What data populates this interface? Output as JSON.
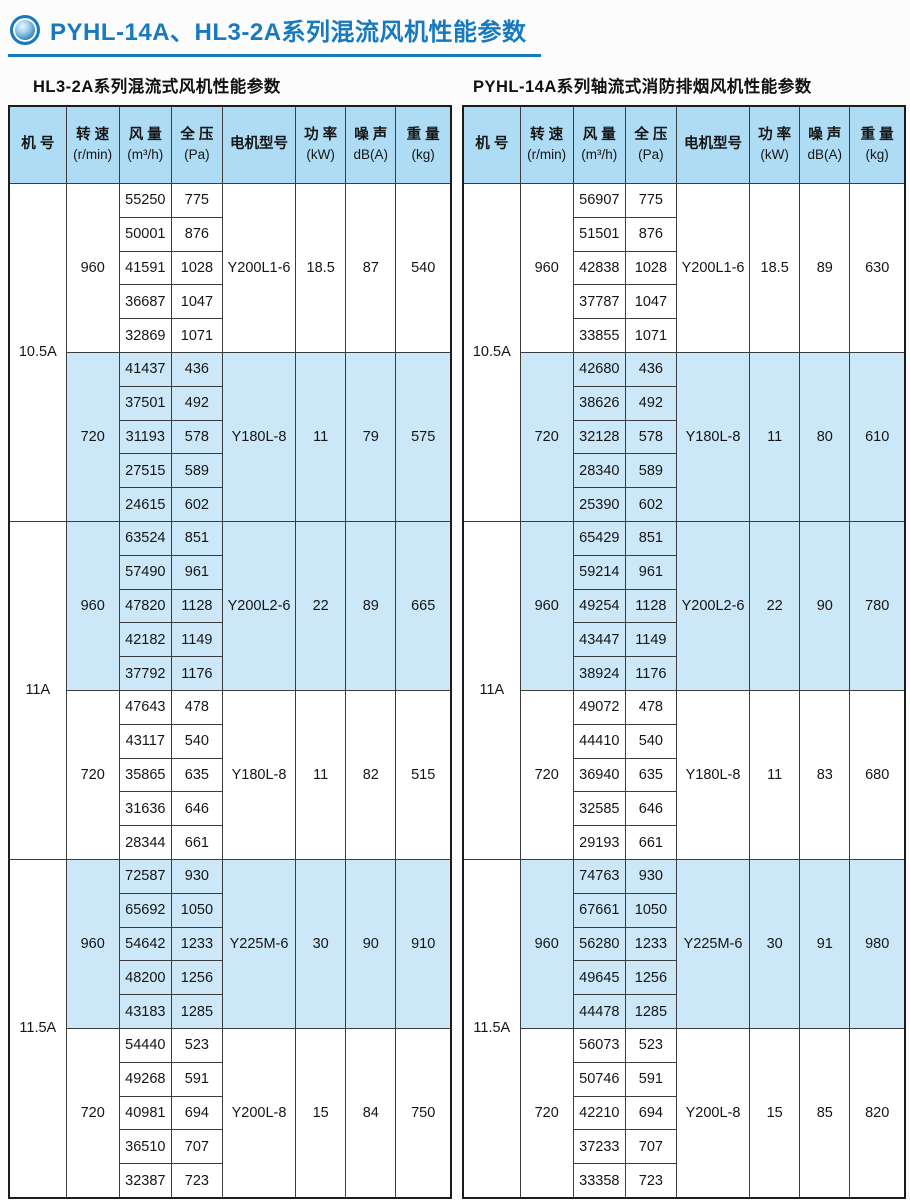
{
  "page": {
    "title": "PYHL-14A、HL3-2A系列混流风机性能参数"
  },
  "colors": {
    "accent_blue": "#1779be",
    "header_bg": "#aedcf4",
    "row_shade_bg": "#cbe7f8",
    "border": "#3c3c3c"
  },
  "headers": [
    {
      "line1": "机 号",
      "line2": ""
    },
    {
      "line1": "转 速",
      "line2": "(r/min)"
    },
    {
      "line1": "风 量",
      "line2": "(m³/h)"
    },
    {
      "line1": "全 压",
      "line2": "(Pa)"
    },
    {
      "line1": "电机型号",
      "line2": ""
    },
    {
      "line1": "功 率",
      "line2": "(kW)"
    },
    {
      "line1": "噪 声",
      "line2": "dB(A)"
    },
    {
      "line1": "重 量",
      "line2": "(kg)"
    }
  ],
  "tables": [
    {
      "id": "hl3-2a",
      "subtitle": "HL3-2A系列混流式风机性能参数",
      "blocks": [
        {
          "model": "10.5A",
          "sections": [
            {
              "speed": "960",
              "shaded": false,
              "motor": "Y200L1-6",
              "power": "18.5",
              "noise": "87",
              "weight": "540",
              "rows": [
                [
                  "55250",
                  "775"
                ],
                [
                  "50001",
                  "876"
                ],
                [
                  "41591",
                  "1028"
                ],
                [
                  "36687",
                  "1047"
                ],
                [
                  "32869",
                  "1071"
                ]
              ]
            },
            {
              "speed": "720",
              "shaded": true,
              "motor": "Y180L-8",
              "power": "11",
              "noise": "79",
              "weight": "575",
              "rows": [
                [
                  "41437",
                  "436"
                ],
                [
                  "37501",
                  "492"
                ],
                [
                  "31193",
                  "578"
                ],
                [
                  "27515",
                  "589"
                ],
                [
                  "24615",
                  "602"
                ]
              ]
            }
          ]
        },
        {
          "model": "11A",
          "sections": [
            {
              "speed": "960",
              "shaded": true,
              "motor": "Y200L2-6",
              "power": "22",
              "noise": "89",
              "weight": "665",
              "rows": [
                [
                  "63524",
                  "851"
                ],
                [
                  "57490",
                  "961"
                ],
                [
                  "47820",
                  "1128"
                ],
                [
                  "42182",
                  "1149"
                ],
                [
                  "37792",
                  "1176"
                ]
              ]
            },
            {
              "speed": "720",
              "shaded": false,
              "motor": "Y180L-8",
              "power": "11",
              "noise": "82",
              "weight": "515",
              "rows": [
                [
                  "47643",
                  "478"
                ],
                [
                  "43117",
                  "540"
                ],
                [
                  "35865",
                  "635"
                ],
                [
                  "31636",
                  "646"
                ],
                [
                  "28344",
                  "661"
                ]
              ]
            }
          ]
        },
        {
          "model": "11.5A",
          "sections": [
            {
              "speed": "960",
              "shaded": true,
              "motor": "Y225M-6",
              "power": "30",
              "noise": "90",
              "weight": "910",
              "rows": [
                [
                  "72587",
                  "930"
                ],
                [
                  "65692",
                  "1050"
                ],
                [
                  "54642",
                  "1233"
                ],
                [
                  "48200",
                  "1256"
                ],
                [
                  "43183",
                  "1285"
                ]
              ]
            },
            {
              "speed": "720",
              "shaded": false,
              "motor": "Y200L-8",
              "power": "15",
              "noise": "84",
              "weight": "750",
              "rows": [
                [
                  "54440",
                  "523"
                ],
                [
                  "49268",
                  "591"
                ],
                [
                  "40981",
                  "694"
                ],
                [
                  "36510",
                  "707"
                ],
                [
                  "32387",
                  "723"
                ]
              ]
            }
          ]
        }
      ]
    },
    {
      "id": "pyhl-14a",
      "subtitle": "PYHL-14A系列轴流式消防排烟风机性能参数",
      "blocks": [
        {
          "model": "10.5A",
          "sections": [
            {
              "speed": "960",
              "shaded": false,
              "motor": "Y200L1-6",
              "power": "18.5",
              "noise": "89",
              "weight": "630",
              "rows": [
                [
                  "56907",
                  "775"
                ],
                [
                  "51501",
                  "876"
                ],
                [
                  "42838",
                  "1028"
                ],
                [
                  "37787",
                  "1047"
                ],
                [
                  "33855",
                  "1071"
                ]
              ]
            },
            {
              "speed": "720",
              "shaded": true,
              "motor": "Y180L-8",
              "power": "11",
              "noise": "80",
              "weight": "610",
              "rows": [
                [
                  "42680",
                  "436"
                ],
                [
                  "38626",
                  "492"
                ],
                [
                  "32128",
                  "578"
                ],
                [
                  "28340",
                  "589"
                ],
                [
                  "25390",
                  "602"
                ]
              ]
            }
          ]
        },
        {
          "model": "11A",
          "sections": [
            {
              "speed": "960",
              "shaded": true,
              "motor": "Y200L2-6",
              "power": "22",
              "noise": "90",
              "weight": "780",
              "rows": [
                [
                  "65429",
                  "851"
                ],
                [
                  "59214",
                  "961"
                ],
                [
                  "49254",
                  "1128"
                ],
                [
                  "43447",
                  "1149"
                ],
                [
                  "38924",
                  "1176"
                ]
              ]
            },
            {
              "speed": "720",
              "shaded": false,
              "motor": "Y180L-8",
              "power": "11",
              "noise": "83",
              "weight": "680",
              "rows": [
                [
                  "49072",
                  "478"
                ],
                [
                  "44410",
                  "540"
                ],
                [
                  "36940",
                  "635"
                ],
                [
                  "32585",
                  "646"
                ],
                [
                  "29193",
                  "661"
                ]
              ]
            }
          ]
        },
        {
          "model": "11.5A",
          "sections": [
            {
              "speed": "960",
              "shaded": true,
              "motor": "Y225M-6",
              "power": "30",
              "noise": "91",
              "weight": "980",
              "rows": [
                [
                  "74763",
                  "930"
                ],
                [
                  "67661",
                  "1050"
                ],
                [
                  "56280",
                  "1233"
                ],
                [
                  "49645",
                  "1256"
                ],
                [
                  "44478",
                  "1285"
                ]
              ]
            },
            {
              "speed": "720",
              "shaded": false,
              "motor": "Y200L-8",
              "power": "15",
              "noise": "85",
              "weight": "820",
              "rows": [
                [
                  "56073",
                  "523"
                ],
                [
                  "50746",
                  "591"
                ],
                [
                  "42210",
                  "694"
                ],
                [
                  "37233",
                  "707"
                ],
                [
                  "33358",
                  "723"
                ]
              ]
            }
          ]
        }
      ]
    }
  ]
}
